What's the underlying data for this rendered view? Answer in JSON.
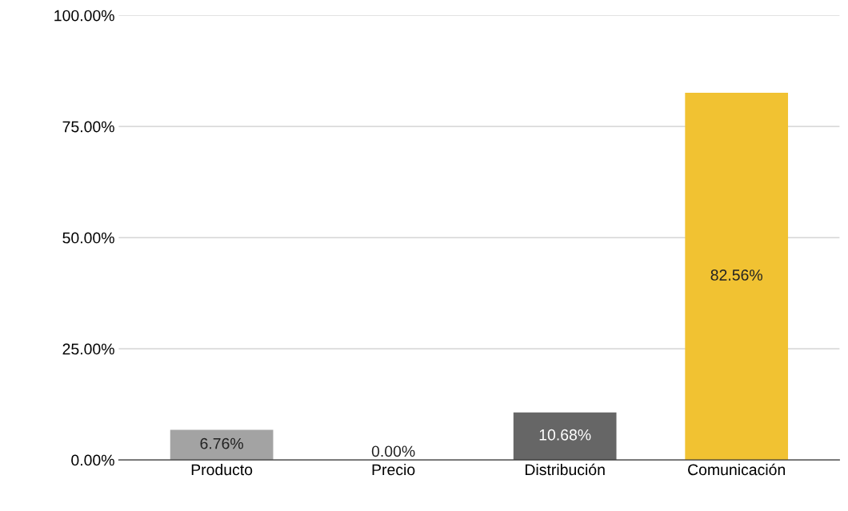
{
  "chart_data": {
    "type": "bar",
    "categories": [
      "Producto",
      "Precio",
      "Distribución",
      "Comunicación"
    ],
    "values": [
      6.76,
      0,
      10.68,
      82.56
    ],
    "colors": [
      "#a3a3a3",
      "#fde08a",
      "#666666",
      "#f1c232"
    ],
    "value_labels": [
      "6.76%",
      "0.00%",
      "10.68%",
      "82.56%"
    ],
    "ylim": [
      0,
      100
    ],
    "yticks": [
      {
        "value": 0,
        "label": "0.00%"
      },
      {
        "value": 25,
        "label": "25.00%"
      },
      {
        "value": 50,
        "label": "50.00%"
      },
      {
        "value": 75,
        "label": "75.00%"
      },
      {
        "value": 100,
        "label": "100.00%"
      }
    ],
    "grid": "y"
  }
}
